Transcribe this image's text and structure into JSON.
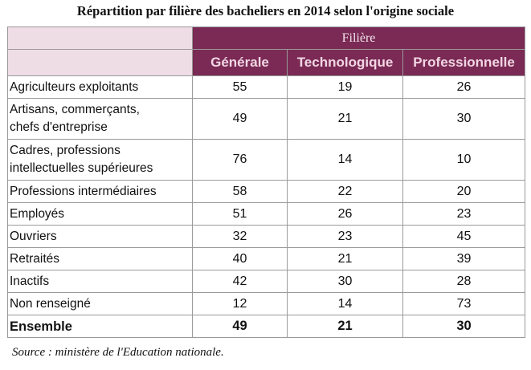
{
  "title": "Répartition par filière des bacheliers en 2014 selon l'origine sociale",
  "table": {
    "group_header": "Filière",
    "columns": [
      "Générale",
      "Technologique",
      "Professionnelle"
    ],
    "rows": [
      {
        "label": "Agriculteurs exploitants",
        "values": [
          "55",
          "19",
          "26"
        ]
      },
      {
        "label_lines": [
          "Artisans, commerçants,",
          "chefs d'entreprise"
        ],
        "values": [
          "49",
          "21",
          "30"
        ]
      },
      {
        "label_lines": [
          "Cadres, professions",
          "intellectuelles supérieures"
        ],
        "values": [
          "76",
          "14",
          "10"
        ]
      },
      {
        "label": "Professions intermédiaires",
        "values": [
          "58",
          "22",
          "20"
        ]
      },
      {
        "label": "Employés",
        "values": [
          "51",
          "26",
          "23"
        ]
      },
      {
        "label": "Ouvriers",
        "values": [
          "32",
          "23",
          "45"
        ]
      },
      {
        "label": "Retraités",
        "values": [
          "40",
          "21",
          "39"
        ]
      },
      {
        "label": "Inactifs",
        "values": [
          "42",
          "30",
          "28"
        ]
      },
      {
        "label": "Non renseigné",
        "values": [
          "12",
          "14",
          "73"
        ]
      }
    ],
    "total": {
      "label": "Ensemble",
      "values": [
        "49",
        "21",
        "30"
      ]
    }
  },
  "source": "Source : ministère de l'Education nationale.",
  "colors": {
    "header_bg": "#7a2a55",
    "header_text": "#f2d6e3",
    "stub_bg": "#efdde5"
  }
}
